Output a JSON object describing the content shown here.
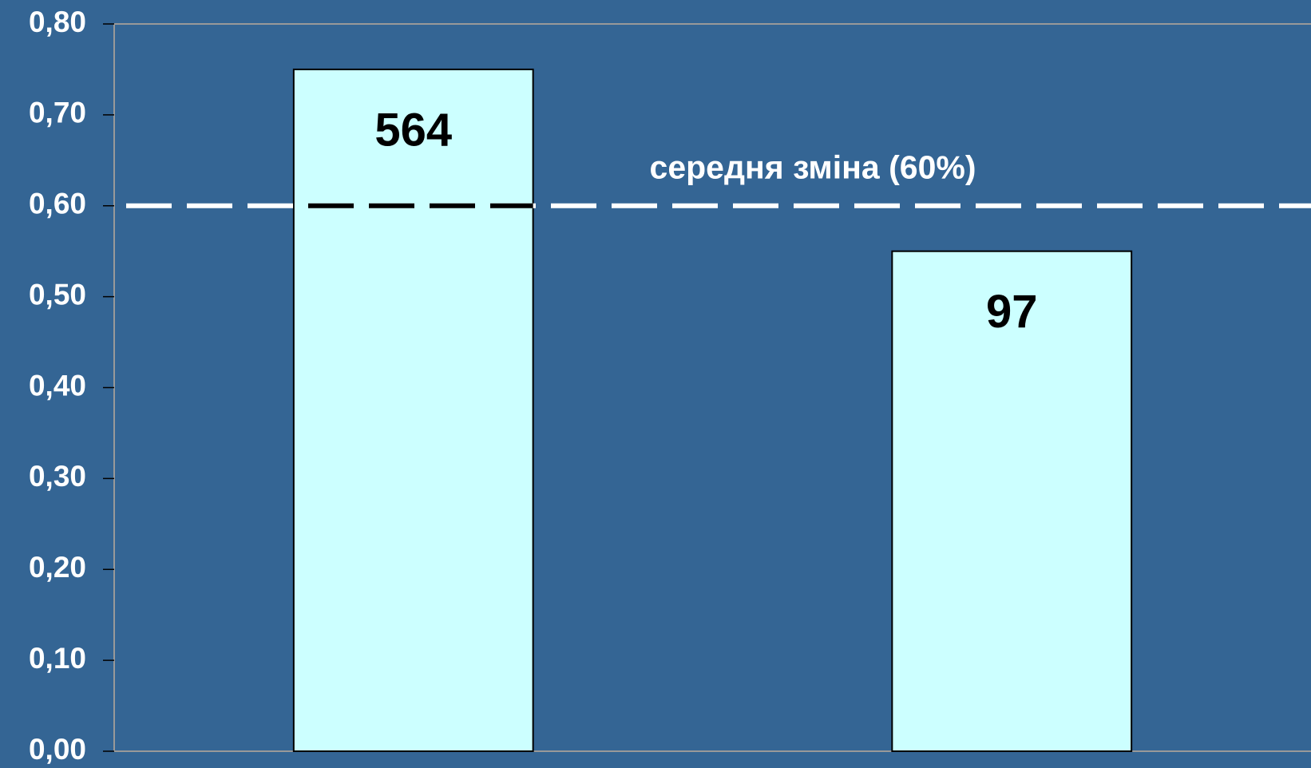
{
  "chart_data": {
    "type": "bar",
    "categories": [
      null,
      null
    ],
    "values": [
      0.75,
      0.55
    ],
    "bar_annotations": [
      "564",
      "97"
    ],
    "color": "#ccffff",
    "ylim": [
      0,
      0.8
    ],
    "yticks": [
      {
        "value": 0,
        "label": "0,00"
      },
      {
        "value": 0.1,
        "label": "0,10"
      },
      {
        "value": 0.2,
        "label": "0,20"
      },
      {
        "value": 0.3,
        "label": "0,30"
      },
      {
        "value": 0.4,
        "label": "0,40"
      },
      {
        "value": 0.5,
        "label": "0,50"
      },
      {
        "value": 0.6,
        "label": "0,60"
      },
      {
        "value": 0.7,
        "label": "0,70"
      },
      {
        "value": 0.8,
        "label": "0,80"
      }
    ],
    "reference_line": {
      "value": 0.6,
      "label": "середня зміна (60%)"
    }
  }
}
